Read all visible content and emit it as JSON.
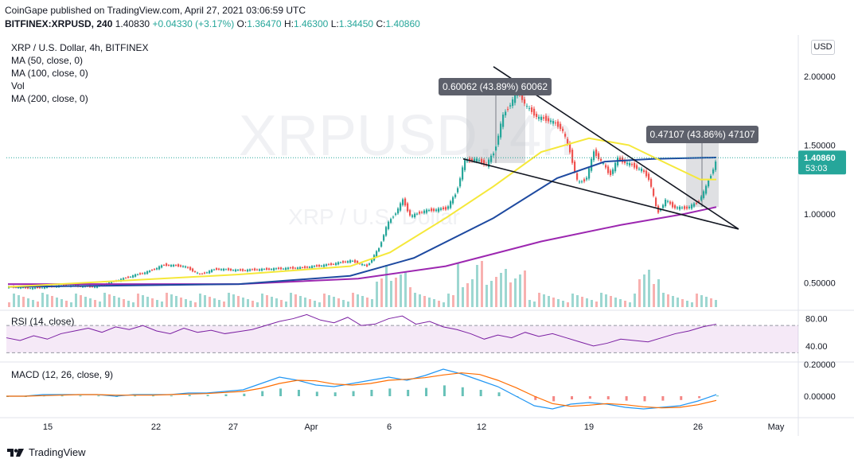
{
  "header": {
    "publisher_line": "CoinGape published on TradingView.com, April 27, 2021 03:06:59 UTC",
    "symbol": "BITFINEX:XRPUSD, 240",
    "last": "1.40830",
    "change": "+0.04330 (+3.17%)",
    "o_label": "O:",
    "o": "1.36470",
    "h_label": "H:",
    "h": "1.46300",
    "l_label": "L:",
    "l": "1.34450",
    "c_label": "C:",
    "c": "1.40860"
  },
  "legend": {
    "title": "XRP / U.S. Dollar, 4h, BITFINEX",
    "ma50": "MA (50, close, 0)",
    "ma100": "MA (100, close, 0)",
    "vol": "Vol",
    "ma200": "MA (200, close, 0)"
  },
  "currency_button": "USD",
  "watermark": {
    "big": "XRPUSD, 4h",
    "small": "XRP / U.S. Dollar"
  },
  "price_badge": {
    "price": "1.40860",
    "countdown": "53:03"
  },
  "colors": {
    "up": "#26a69a",
    "down": "#ef5350",
    "ma50": "#f5e83a",
    "ma100": "#1e4aa0",
    "ma200": "#9c27b0",
    "rsi": "#7b1fa2",
    "macd": "#2196f3",
    "signal": "#ff6d00",
    "badge": "#26a69a"
  },
  "annotations": [
    {
      "text": "0.60062 (43.89%) 60062"
    },
    {
      "text": "0.47107 (43.86%) 47107"
    }
  ],
  "indicators": {
    "rsi_label": "RSI (14, close)",
    "macd_label": "MACD (12, 26, close, 9)"
  },
  "footer": {
    "brand": "TradingView"
  },
  "chart_data": {
    "type": "candlestick",
    "price_axis": {
      "ticks": [
        "2.00000",
        "1.50000",
        "1.00000",
        "0.50000"
      ],
      "top_tick": "2",
      "ylim": [
        0.3,
        2.3
      ]
    },
    "x_axis": {
      "ticks": [
        "15",
        "22",
        "27",
        "Apr",
        "6",
        "12",
        "19",
        "26",
        "May"
      ]
    },
    "rsi_axis": {
      "ticks": [
        "80.00",
        "40.00"
      ],
      "upper_band": 70,
      "lower_band": 30
    },
    "macd_axis": {
      "ticks": [
        "0.20000",
        "0.00000"
      ]
    },
    "close_path": [
      {
        "x": 10,
        "y": 0.47
      },
      {
        "x": 40,
        "y": 0.46
      },
      {
        "x": 80,
        "y": 0.48
      },
      {
        "x": 120,
        "y": 0.47
      },
      {
        "x": 165,
        "y": 0.55
      },
      {
        "x": 185,
        "y": 0.58
      },
      {
        "x": 205,
        "y": 0.63
      },
      {
        "x": 230,
        "y": 0.62
      },
      {
        "x": 250,
        "y": 0.56
      },
      {
        "x": 270,
        "y": 0.6
      },
      {
        "x": 300,
        "y": 0.59
      },
      {
        "x": 340,
        "y": 0.6
      },
      {
        "x": 380,
        "y": 0.61
      },
      {
        "x": 410,
        "y": 0.63
      },
      {
        "x": 440,
        "y": 0.66
      },
      {
        "x": 460,
        "y": 0.62
      },
      {
        "x": 475,
        "y": 0.75
      },
      {
        "x": 485,
        "y": 0.92
      },
      {
        "x": 495,
        "y": 1.0
      },
      {
        "x": 505,
        "y": 1.1
      },
      {
        "x": 515,
        "y": 0.98
      },
      {
        "x": 530,
        "y": 1.02
      },
      {
        "x": 545,
        "y": 1.03
      },
      {
        "x": 560,
        "y": 1.04
      },
      {
        "x": 572,
        "y": 1.15
      },
      {
        "x": 582,
        "y": 1.38
      },
      {
        "x": 595,
        "y": 1.4
      },
      {
        "x": 610,
        "y": 1.36
      },
      {
        "x": 620,
        "y": 1.45
      },
      {
        "x": 630,
        "y": 1.7
      },
      {
        "x": 640,
        "y": 1.8
      },
      {
        "x": 650,
        "y": 1.9
      },
      {
        "x": 660,
        "y": 1.78
      },
      {
        "x": 675,
        "y": 1.7
      },
      {
        "x": 690,
        "y": 1.68
      },
      {
        "x": 705,
        "y": 1.62
      },
      {
        "x": 715,
        "y": 1.45
      },
      {
        "x": 725,
        "y": 1.22
      },
      {
        "x": 735,
        "y": 1.25
      },
      {
        "x": 745,
        "y": 1.45
      },
      {
        "x": 755,
        "y": 1.38
      },
      {
        "x": 765,
        "y": 1.28
      },
      {
        "x": 775,
        "y": 1.4
      },
      {
        "x": 790,
        "y": 1.36
      },
      {
        "x": 805,
        "y": 1.32
      },
      {
        "x": 815,
        "y": 1.25
      },
      {
        "x": 825,
        "y": 1.0
      },
      {
        "x": 835,
        "y": 1.1
      },
      {
        "x": 845,
        "y": 1.05
      },
      {
        "x": 860,
        "y": 1.04
      },
      {
        "x": 875,
        "y": 1.08
      },
      {
        "x": 885,
        "y": 1.18
      },
      {
        "x": 893,
        "y": 1.3
      },
      {
        "x": 900,
        "y": 1.41
      }
    ],
    "ma50": [
      {
        "x": 10,
        "y": 0.47
      },
      {
        "x": 300,
        "y": 0.56
      },
      {
        "x": 440,
        "y": 0.62
      },
      {
        "x": 490,
        "y": 0.72
      },
      {
        "x": 560,
        "y": 0.97
      },
      {
        "x": 620,
        "y": 1.2
      },
      {
        "x": 680,
        "y": 1.45
      },
      {
        "x": 740,
        "y": 1.55
      },
      {
        "x": 790,
        "y": 1.5
      },
      {
        "x": 840,
        "y": 1.36
      },
      {
        "x": 880,
        "y": 1.25
      },
      {
        "x": 900,
        "y": 1.25
      }
    ],
    "ma100": [
      {
        "x": 10,
        "y": 0.47
      },
      {
        "x": 300,
        "y": 0.49
      },
      {
        "x": 440,
        "y": 0.55
      },
      {
        "x": 520,
        "y": 0.68
      },
      {
        "x": 620,
        "y": 0.97
      },
      {
        "x": 700,
        "y": 1.26
      },
      {
        "x": 760,
        "y": 1.38
      },
      {
        "x": 820,
        "y": 1.4
      },
      {
        "x": 900,
        "y": 1.41
      }
    ],
    "ma200": [
      {
        "x": 10,
        "y": 0.49
      },
      {
        "x": 300,
        "y": 0.49
      },
      {
        "x": 450,
        "y": 0.53
      },
      {
        "x": 560,
        "y": 0.62
      },
      {
        "x": 680,
        "y": 0.8
      },
      {
        "x": 780,
        "y": 0.92
      },
      {
        "x": 860,
        "y": 1.0
      },
      {
        "x": 900,
        "y": 1.05
      }
    ],
    "trendlines": [
      {
        "x1": 582,
        "y1": 1.4,
        "x2": 928,
        "y2": 0.89
      },
      {
        "x1": 620,
        "y1": 2.07,
        "x2": 928,
        "y2": 0.89
      }
    ],
    "rsi": [
      52,
      48,
      55,
      50,
      58,
      62,
      66,
      60,
      68,
      64,
      70,
      62,
      58,
      66,
      60,
      63,
      58,
      61,
      64,
      70,
      76,
      80,
      86,
      78,
      74,
      82,
      70,
      72,
      80,
      84,
      72,
      76,
      68,
      64,
      58,
      50,
      56,
      52,
      60,
      54,
      58,
      52,
      46,
      40,
      44,
      50,
      48,
      46,
      52,
      58,
      62,
      68,
      72
    ],
    "macd": [
      0.0,
      0.0,
      0.01,
      0.01,
      0.01,
      0.01,
      0.0,
      0.01,
      0.01,
      0.01,
      0.02,
      0.02,
      0.03,
      0.04,
      0.08,
      0.12,
      0.1,
      0.07,
      0.06,
      0.08,
      0.1,
      0.12,
      0.1,
      0.13,
      0.17,
      0.14,
      0.1,
      0.06,
      0.0,
      -0.06,
      -0.08,
      -0.05,
      -0.04,
      -0.05,
      -0.07,
      -0.08,
      -0.07,
      -0.06,
      -0.03,
      0.01
    ]
  }
}
